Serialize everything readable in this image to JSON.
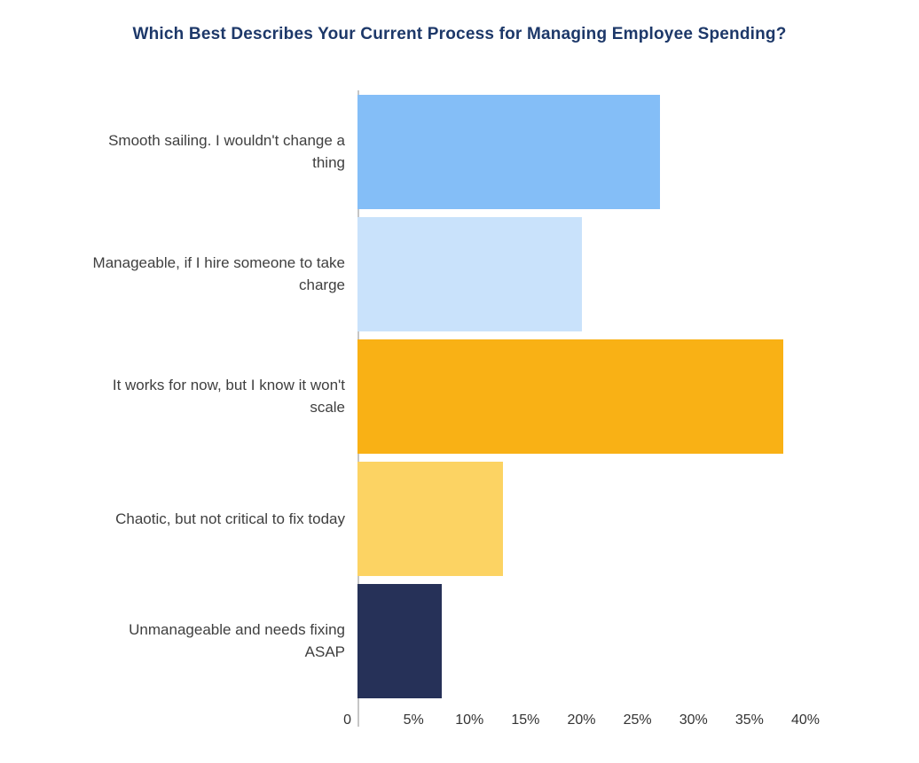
{
  "chart_data": {
    "type": "bar",
    "orientation": "horizontal",
    "title": "Which Best Describes Your Current Process for Managing Employee Spending?",
    "categories": [
      "Smooth sailing. I wouldn't change a thing",
      "Manageable, if I hire someone to take charge",
      "It works for now, but I know it won't scale",
      "Chaotic, but not critical to fix today",
      "Unmanageable and needs fixing ASAP"
    ],
    "values": [
      27,
      20,
      38,
      13,
      7.5
    ],
    "unit": "%",
    "xlabel": "",
    "ylabel": "",
    "xlim": [
      0,
      40
    ],
    "tick_labels": [
      "0",
      "5%",
      "10%",
      "15%",
      "20%",
      "25%",
      "30%",
      "35%",
      "40%"
    ],
    "bar_colors": [
      "#84bef7",
      "#c9e2fb",
      "#f9b115",
      "#fcd363",
      "#263158"
    ],
    "title_color": "#1d3869",
    "label_color": "#3f3f3f",
    "axis_color": "#c6c6c6",
    "grid": false,
    "legend": false
  }
}
